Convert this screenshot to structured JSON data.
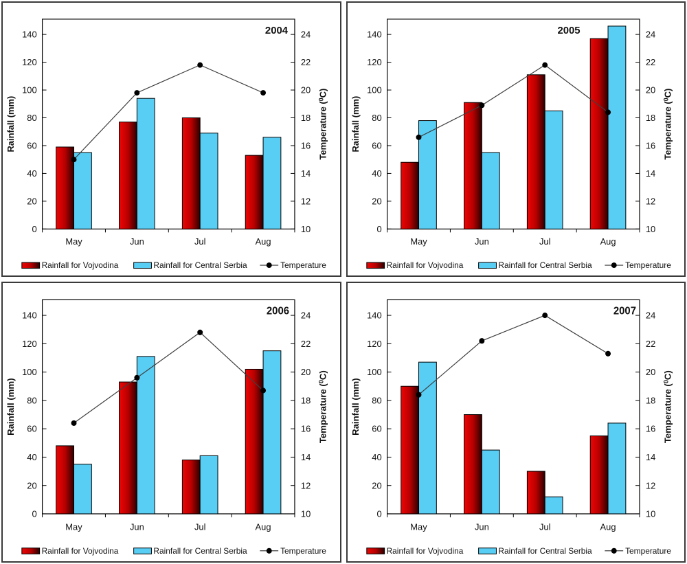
{
  "figure": {
    "description": "Monthly rainfall and temperature, May-August, four years",
    "colors": {
      "vojvodina_gradient": [
        "#ee0505",
        "#b80000",
        "#2d0000"
      ],
      "central_serbia": "#58cef5",
      "bar_outline": "#000000",
      "temperature_line": "#3f3f3f",
      "temperature_marker": "#000000",
      "text": "#111111",
      "panel_border": "#3a3a3a"
    }
  },
  "chart_data": [
    {
      "type": "bar",
      "title": "2004",
      "title_anchor_x": 418,
      "categories": [
        "May",
        "Jun",
        "Jul",
        "Aug"
      ],
      "series": [
        {
          "name": "Rainfall for Vojvodina",
          "kind": "bar",
          "axis": "left",
          "values": [
            59,
            77,
            80,
            53
          ]
        },
        {
          "name": "Rainfall for Central Serbia",
          "kind": "bar",
          "axis": "left",
          "values": [
            55,
            94,
            69,
            66
          ]
        },
        {
          "name": "Temperature",
          "kind": "line",
          "axis": "right",
          "values": [
            15.0,
            19.8,
            21.8,
            19.8
          ]
        }
      ],
      "axes": {
        "left": {
          "label": "Rainfall (mm)",
          "ticks": [
            0,
            20,
            40,
            60,
            80,
            100,
            120,
            140
          ],
          "range": [
            0,
            151
          ]
        },
        "right": {
          "label": "Temperature  (⁰C)",
          "ticks": [
            10,
            12,
            14,
            16,
            18,
            20,
            22,
            24
          ],
          "range": [
            10,
            25.1
          ]
        }
      },
      "grid": false,
      "legend_position": "bottom"
    },
    {
      "type": "bar",
      "title": "2005",
      "title_anchor_x": 341,
      "categories": [
        "May",
        "Jun",
        "Jul",
        "Aug"
      ],
      "series": [
        {
          "name": "Rainfall for Vojvodina",
          "kind": "bar",
          "axis": "left",
          "values": [
            48,
            91,
            111,
            137
          ]
        },
        {
          "name": "Rainfall for Central Serbia",
          "kind": "bar",
          "axis": "left",
          "values": [
            78,
            55,
            85,
            146
          ]
        },
        {
          "name": "Temperature",
          "kind": "line",
          "axis": "right",
          "values": [
            16.6,
            18.9,
            21.8,
            18.4
          ]
        }
      ],
      "axes": {
        "left": {
          "label": "Rainfall (mm)",
          "ticks": [
            0,
            20,
            40,
            60,
            80,
            100,
            120,
            140
          ],
          "range": [
            0,
            151
          ]
        },
        "right": {
          "label": "Temperature  (⁰C)",
          "ticks": [
            10,
            12,
            14,
            16,
            18,
            20,
            22,
            24
          ],
          "range": [
            10,
            25.1
          ]
        }
      },
      "grid": false,
      "legend_position": "bottom"
    },
    {
      "type": "bar",
      "title": "2006",
      "title_anchor_x": 420,
      "categories": [
        "May",
        "Jun",
        "Jul",
        "Aug"
      ],
      "series": [
        {
          "name": "Rainfall for Vojvodina",
          "kind": "bar",
          "axis": "left",
          "values": [
            48,
            93,
            38,
            102
          ]
        },
        {
          "name": "Rainfall for Central Serbia",
          "kind": "bar",
          "axis": "left",
          "values": [
            35,
            111,
            41,
            115
          ]
        },
        {
          "name": "Temperature",
          "kind": "line",
          "axis": "right",
          "values": [
            16.4,
            19.6,
            22.8,
            18.7
          ]
        }
      ],
      "axes": {
        "left": {
          "label": "Rainfall (mm)",
          "ticks": [
            0,
            20,
            40,
            60,
            80,
            100,
            120,
            140
          ],
          "range": [
            0,
            151
          ]
        },
        "right": {
          "label": "Temperature  (⁰C)",
          "ticks": [
            10,
            12,
            14,
            16,
            18,
            20,
            22,
            24
          ],
          "range": [
            10,
            25.1
          ]
        }
      },
      "grid": false,
      "legend_position": "bottom"
    },
    {
      "type": "bar",
      "title": "2007",
      "title_anchor_x": 423,
      "categories": [
        "May",
        "Jun",
        "Jul",
        "Aug"
      ],
      "series": [
        {
          "name": "Rainfall for Vojvodina",
          "kind": "bar",
          "axis": "left",
          "values": [
            90,
            70,
            30,
            55
          ]
        },
        {
          "name": "Rainfall for Central Serbia",
          "kind": "bar",
          "axis": "left",
          "values": [
            107,
            45,
            12,
            64
          ]
        },
        {
          "name": "Temperature",
          "kind": "line",
          "axis": "right",
          "values": [
            18.4,
            22.2,
            24.0,
            21.3
          ]
        }
      ],
      "axes": {
        "left": {
          "label": "Rainfall (mm)",
          "ticks": [
            0,
            20,
            40,
            60,
            80,
            100,
            120,
            140
          ],
          "range": [
            0,
            151
          ]
        },
        "right": {
          "label": "Temperature  (⁰C)",
          "ticks": [
            10,
            12,
            14,
            16,
            18,
            20,
            22,
            24
          ],
          "range": [
            10,
            25.1
          ]
        }
      },
      "grid": false,
      "legend_position": "bottom"
    }
  ]
}
